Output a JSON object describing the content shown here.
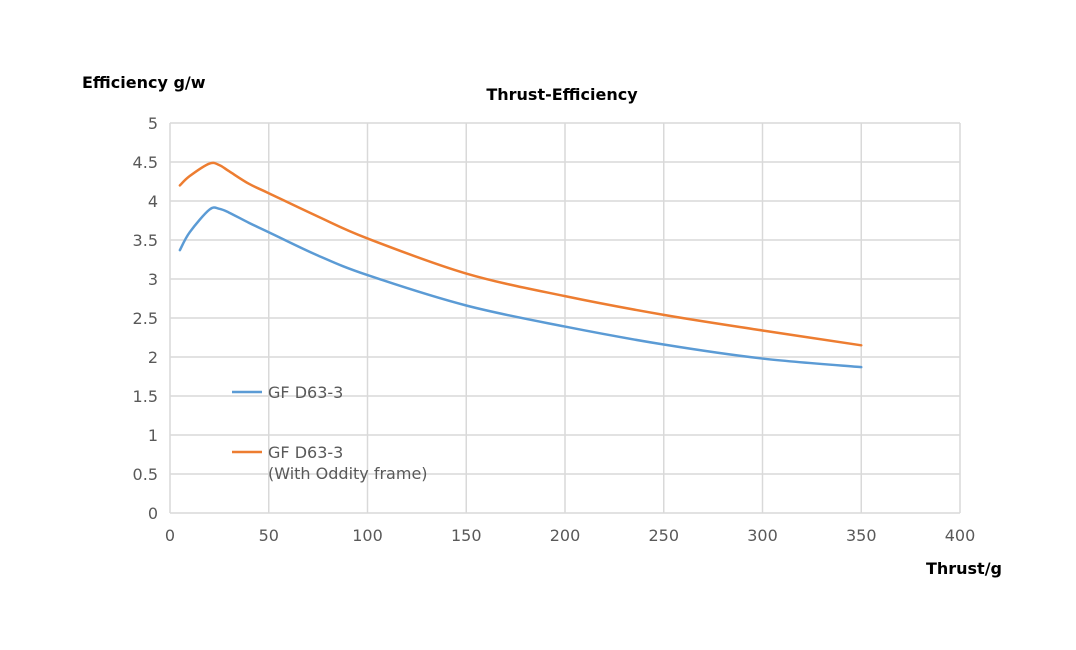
{
  "chart_data": {
    "type": "line",
    "title": "Thrust-Efficiency",
    "xlabel": "Thrust/g",
    "ylabel": "Efficiency g/w",
    "xlim": [
      0,
      400
    ],
    "ylim": [
      0,
      5
    ],
    "grid": true,
    "legend_position": "left-middle inside",
    "x_ticks": [
      "0",
      "50",
      "100",
      "150",
      "200",
      "250",
      "300",
      "350",
      "400"
    ],
    "y_ticks": [
      "0",
      "0.5",
      "1",
      "1.5",
      "2",
      "2.5",
      "3",
      "3.5",
      "4",
      "4.5",
      "5"
    ],
    "series": [
      {
        "name": "GF D63-3",
        "color": "#5b9bd5",
        "x": [
          5,
          10,
          20,
          25,
          30,
          40,
          50,
          75,
          100,
          150,
          200,
          250,
          300,
          350
        ],
        "y": [
          3.37,
          3.6,
          3.89,
          3.9,
          3.85,
          3.72,
          3.6,
          3.3,
          3.05,
          2.66,
          2.39,
          2.16,
          1.98,
          1.87
        ]
      },
      {
        "name": "GF D63-3",
        "name_line2": "(With Oddity frame)",
        "color": "#ed7d31",
        "x": [
          5,
          10,
          20,
          25,
          30,
          40,
          50,
          75,
          100,
          150,
          200,
          250,
          300,
          350
        ],
        "y": [
          4.2,
          4.32,
          4.48,
          4.46,
          4.38,
          4.22,
          4.1,
          3.8,
          3.52,
          3.07,
          2.78,
          2.54,
          2.34,
          2.15
        ]
      }
    ]
  }
}
